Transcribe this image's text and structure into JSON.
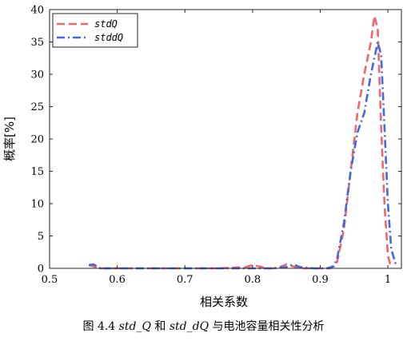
{
  "chart_data": {
    "type": "line",
    "title": "",
    "xlabel": "相关系数",
    "ylabel": "概率[%]",
    "xlim": [
      0.5,
      1.02
    ],
    "ylim": [
      0,
      40
    ],
    "xticks": [
      0.5,
      0.6,
      0.7,
      0.8,
      0.9,
      1
    ],
    "xtick_labels": [
      "0.5",
      "0.6",
      "0.7",
      "0.8",
      "0.9",
      "1"
    ],
    "yticks": [
      0,
      5,
      10,
      15,
      20,
      25,
      30,
      35,
      40
    ],
    "ytick_labels": [
      "0",
      "5",
      "10",
      "15",
      "20",
      "25",
      "30",
      "35",
      "40"
    ],
    "grid": false,
    "legend": "top-left",
    "series": [
      {
        "name": "stdQ",
        "color": "#f0666a",
        "dash": "dashed",
        "x": [
          0.558,
          0.565,
          0.575,
          0.6,
          0.65,
          0.7,
          0.75,
          0.79,
          0.8,
          0.81,
          0.82,
          0.83,
          0.84,
          0.85,
          0.86,
          0.87,
          0.88,
          0.9,
          0.915,
          0.925,
          0.935,
          0.945,
          0.955,
          0.965,
          0.975,
          0.98,
          0.985,
          0.99,
          0.995,
          1.0,
          1.005
        ],
        "y": [
          0.5,
          0.3,
          0.0,
          0.0,
          0.0,
          0.0,
          0.0,
          0.2,
          0.5,
          0.3,
          0.0,
          0.0,
          0.2,
          0.6,
          0.3,
          0.0,
          0.0,
          0.0,
          0.0,
          1.0,
          6.0,
          15.0,
          24.0,
          30.0,
          35.0,
          39.0,
          37.0,
          22.0,
          10.0,
          2.0,
          0.0
        ]
      },
      {
        "name": "stddQ",
        "color": "#4169e1",
        "dash": "dashdot",
        "x": [
          0.558,
          0.565,
          0.575,
          0.6,
          0.65,
          0.7,
          0.75,
          0.8,
          0.83,
          0.85,
          0.86,
          0.87,
          0.89,
          0.91,
          0.92,
          0.925,
          0.935,
          0.945,
          0.955,
          0.965,
          0.975,
          0.985,
          0.99,
          0.995,
          1.0,
          1.005,
          1.012
        ],
        "y": [
          0.5,
          0.6,
          0.0,
          0.0,
          0.0,
          0.0,
          0.0,
          0.0,
          0.0,
          0.2,
          0.6,
          0.2,
          0.0,
          0.0,
          0.3,
          1.5,
          7.0,
          15.0,
          21.0,
          24.0,
          30.0,
          35.0,
          33.0,
          22.0,
          10.0,
          3.0,
          0.5
        ]
      }
    ]
  },
  "caption": {
    "prefix": "图 4.4 ",
    "var1": "std_Q",
    "mid": " 和 ",
    "var2": "std_dQ",
    "suffix": " 与电池容量相关性分析"
  }
}
